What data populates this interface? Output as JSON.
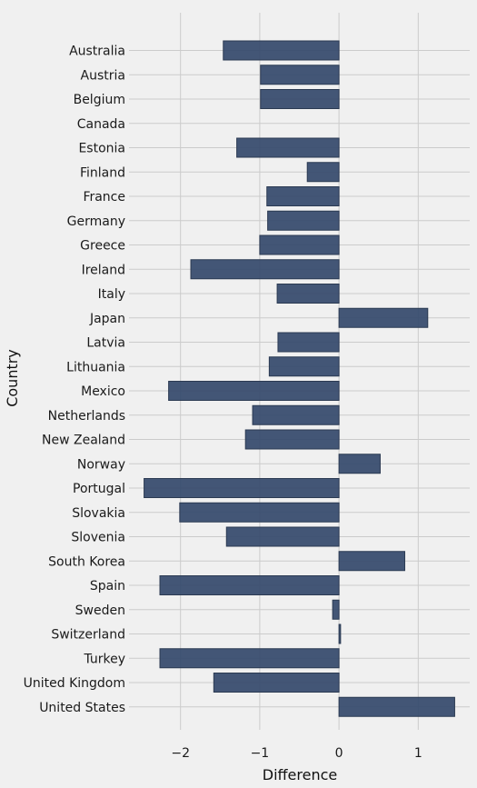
{
  "chart_data": {
    "type": "bar",
    "orientation": "horizontal",
    "xlabel": "Difference",
    "ylabel": "Country",
    "xlim": [
      -2.65,
      1.65
    ],
    "xticks": [
      -2,
      -1,
      0,
      1
    ],
    "xtick_labels": [
      "−2",
      "−1",
      "0",
      "1"
    ],
    "grid": true,
    "bar_color": "#34496b",
    "background": "#f0f0f0",
    "categories": [
      "Australia",
      "Austria",
      "Belgium",
      "Canada",
      "Estonia",
      "Finland",
      "France",
      "Germany",
      "Greece",
      "Ireland",
      "Italy",
      "Japan",
      "Latvia",
      "Lithuania",
      "Mexico",
      "Netherlands",
      "New Zealand",
      "Norway",
      "Portugal",
      "Slovakia",
      "Slovenia",
      "South Korea",
      "Spain",
      "Sweden",
      "Switzerland",
      "Turkey",
      "United Kingdom",
      "United States"
    ],
    "values": [
      -1.46,
      -0.99,
      -0.99,
      0.0,
      -1.29,
      -0.4,
      -0.91,
      -0.9,
      -1.0,
      -1.87,
      -0.78,
      1.12,
      -0.77,
      -0.88,
      -2.15,
      -1.09,
      -1.18,
      0.52,
      -2.46,
      -2.01,
      -1.42,
      0.83,
      -2.26,
      -0.08,
      0.02,
      -2.26,
      -1.58,
      1.46
    ]
  }
}
